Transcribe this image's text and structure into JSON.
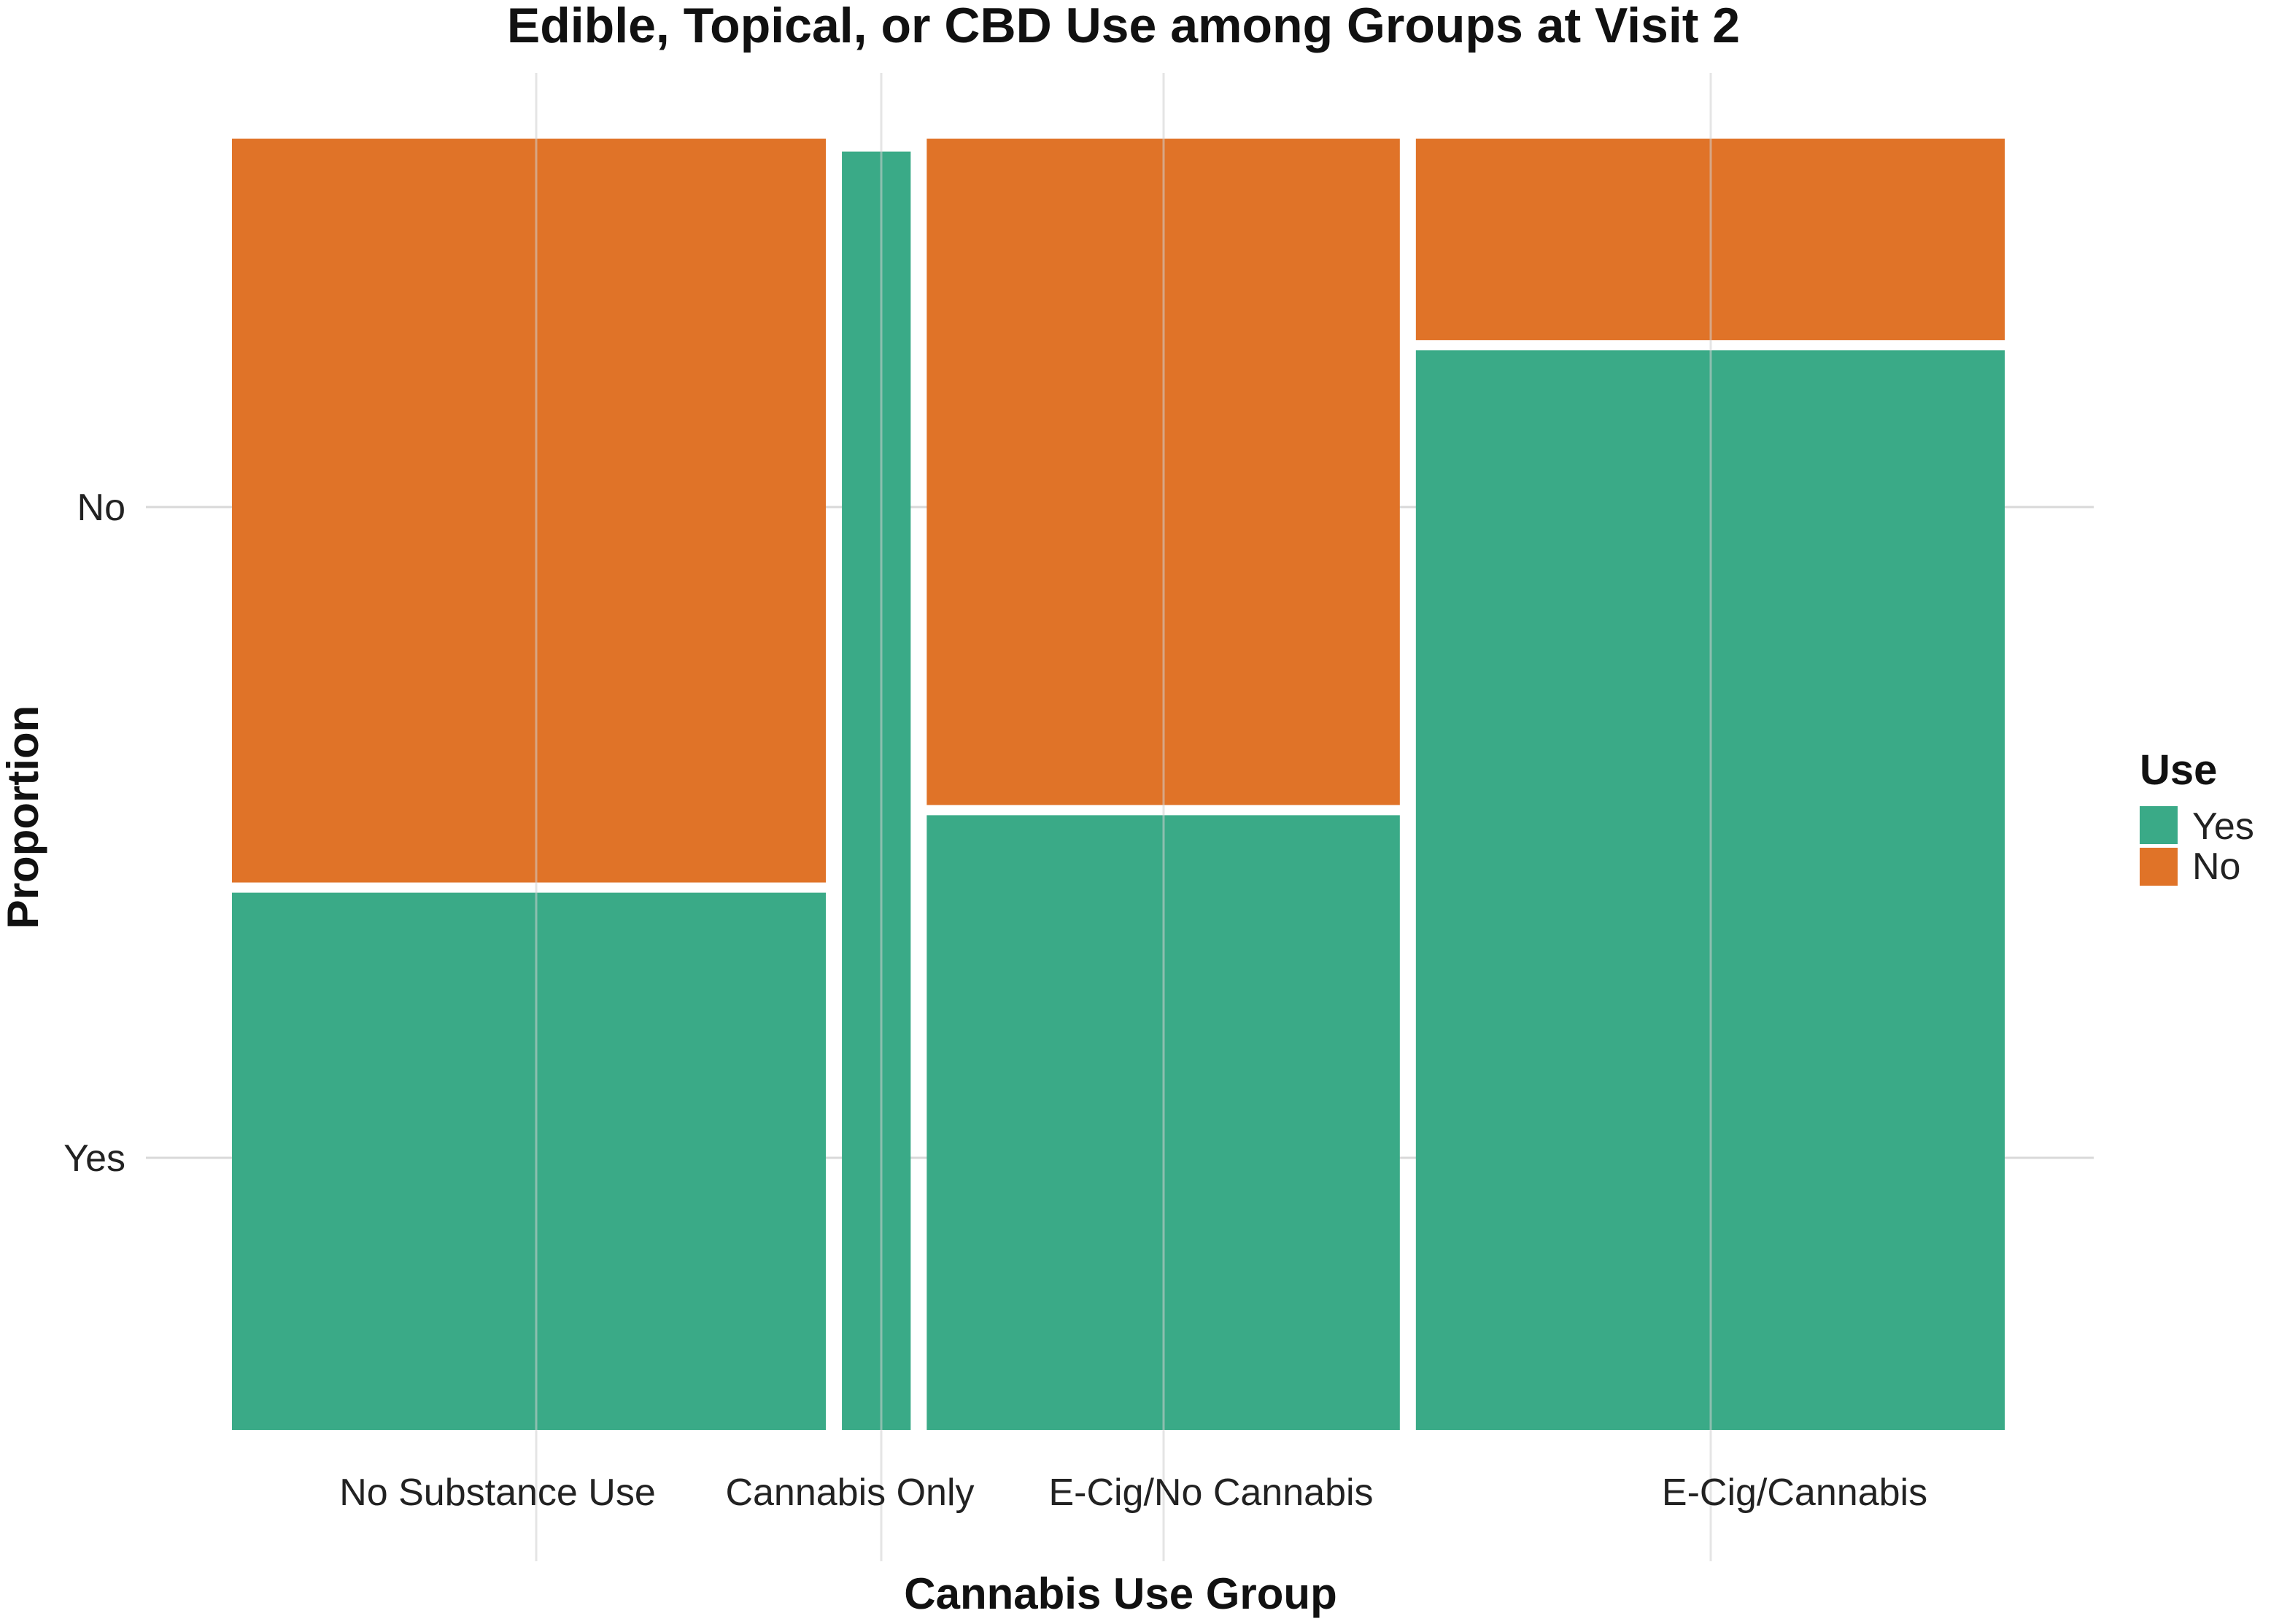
{
  "chart_data": {
    "type": "mosaic",
    "title": "Edible, Topical, or CBD Use among Groups at Visit 2",
    "xlabel": "Cannabis Use Group",
    "ylabel": "Proportion",
    "y_tick_labels": [
      "No",
      "Yes"
    ],
    "legend": {
      "title": "Use",
      "position": "right",
      "entries": [
        {
          "label": "Yes",
          "color": "#3AAA87"
        },
        {
          "label": "No",
          "color": "#E07328"
        }
      ]
    },
    "categories": [
      "No Substance Use",
      "Cannabis Only",
      "E-Cig/No Cannabis",
      "E-Cig/Cannabis"
    ],
    "category_widths": [
      0.354,
      0.041,
      0.282,
      0.351
    ],
    "series": [
      {
        "name": "Yes",
        "values": [
          0.42,
          0.99,
          0.48,
          0.84
        ]
      },
      {
        "name": "No",
        "values": [
          0.58,
          0.01,
          0.52,
          0.16
        ]
      }
    ],
    "grid": true
  }
}
